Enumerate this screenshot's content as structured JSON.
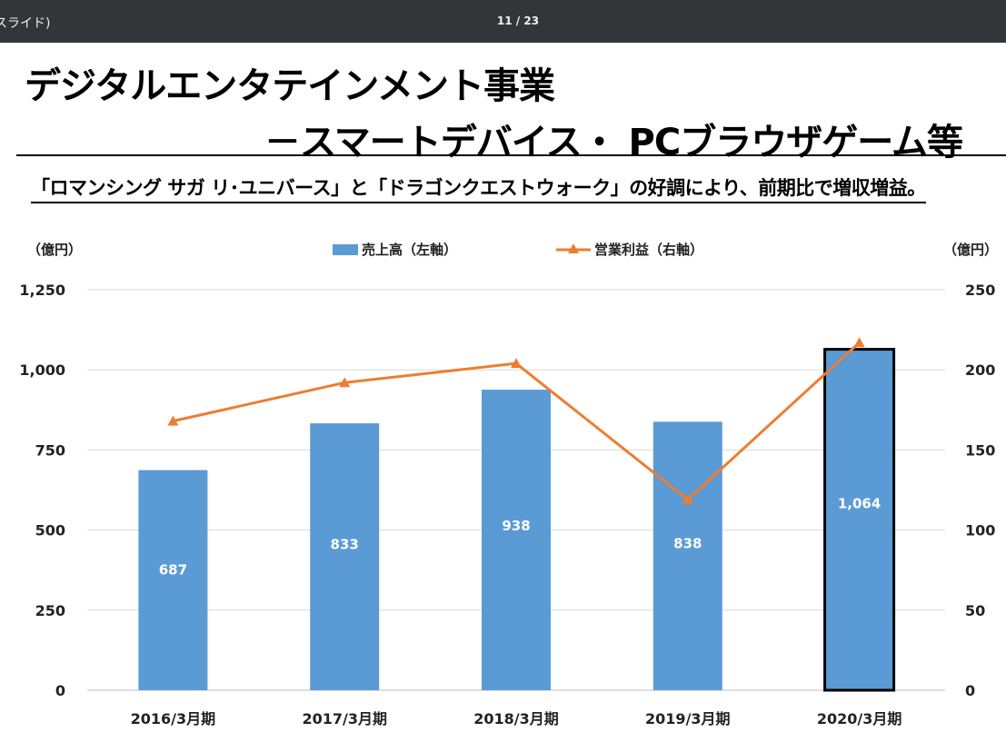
{
  "viewer": {
    "doc_title": "スライド)",
    "page_counter": "11 / 23"
  },
  "slide": {
    "title_line1": "デジタルエンタテインメント事業",
    "title_line2": "－スマートデバイス・ PCブラウザゲーム等",
    "subtitle": "「ロマンシング サガ リ･ユニバース」と「ドラゴンクエストウォーク」の好調により、前期比で増収増益。"
  },
  "colors": {
    "bar": "#5b9bd5",
    "line": "#ed7d31",
    "grid": "#d9d9d9",
    "highlight_border": "#000000"
  },
  "chart_data": {
    "type": "bar",
    "categories": [
      "2016/3月期",
      "2017/3月期",
      "2018/3月期",
      "2019/3月期",
      "2020/3月期"
    ],
    "series": [
      {
        "name": "売上高（左軸）",
        "type": "bar",
        "axis": "left",
        "values": [
          687,
          833,
          938,
          838,
          1064
        ],
        "labels": [
          "687",
          "833",
          "938",
          "838",
          "1,064"
        ]
      },
      {
        "name": "営業利益（右軸）",
        "type": "line",
        "axis": "right",
        "marker": "triangle",
        "values": [
          168,
          192,
          204,
          119,
          217
        ]
      }
    ],
    "left_axis": {
      "unit": "（億円）",
      "range": [
        0,
        1250
      ],
      "ticks": [
        0,
        250,
        500,
        750,
        1000,
        1250
      ],
      "tick_labels": [
        "0",
        "250",
        "500",
        "750",
        "1,000",
        "1,250"
      ]
    },
    "right_axis": {
      "unit": "（億円）",
      "range": [
        0,
        250
      ],
      "ticks": [
        0,
        50,
        100,
        150,
        200,
        250
      ],
      "tick_labels": [
        "0",
        "50",
        "100",
        "150",
        "200",
        "250"
      ]
    },
    "legend_position": "top-center",
    "highlight_category": "2020/3月期",
    "grid": true
  }
}
